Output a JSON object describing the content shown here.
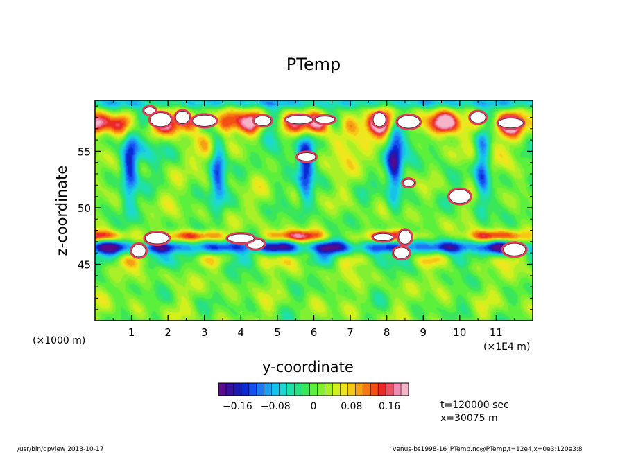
{
  "chart_data": {
    "type": "heatmap",
    "title": "PTemp",
    "xlabel": "y-coordinate",
    "ylabel": "z-coordinate",
    "x_unit_left": "(×1000 m)",
    "x_unit_right": "(×1E4 m)",
    "xlim": [
      0,
      12
    ],
    "ylim": [
      40,
      59.5
    ],
    "x_ticks": [
      {
        "value": 1,
        "label": "1"
      },
      {
        "value": 2,
        "label": "2"
      },
      {
        "value": 3,
        "label": "3"
      },
      {
        "value": 4,
        "label": "4"
      },
      {
        "value": 5,
        "label": "5"
      },
      {
        "value": 6,
        "label": "6"
      },
      {
        "value": 7,
        "label": "7"
      },
      {
        "value": 8,
        "label": "8"
      },
      {
        "value": 9,
        "label": "9"
      },
      {
        "value": 10,
        "label": "10"
      },
      {
        "value": 11,
        "label": "11"
      }
    ],
    "y_ticks": [
      {
        "value": 45,
        "label": "45"
      },
      {
        "value": 50,
        "label": "50"
      },
      {
        "value": 55,
        "label": "55"
      }
    ],
    "colorbar": {
      "min": -0.2,
      "max": 0.2,
      "ticks": [
        {
          "value": -0.16,
          "label": "−0.16"
        },
        {
          "value": -0.08,
          "label": "−0.08"
        },
        {
          "value": 0,
          "label": "0"
        },
        {
          "value": 0.08,
          "label": "0.08"
        },
        {
          "value": 0.16,
          "label": "0.16"
        }
      ],
      "colors": [
        "#5a0a8c",
        "#3a10a0",
        "#1a1ab4",
        "#0a2ad2",
        "#1450f0",
        "#1e78f5",
        "#1ea0f0",
        "#14c3eb",
        "#1ed7d2",
        "#1ee1aa",
        "#28e182",
        "#3ce65a",
        "#5af03c",
        "#82f032",
        "#aaf028",
        "#d2f01e",
        "#f0e61e",
        "#f5c814",
        "#f5a014",
        "#f57814",
        "#f55014",
        "#eb2828",
        "#eb5064",
        "#f08cb4",
        "#f5b4c8"
      ]
    },
    "annotations": {
      "time": "t=120000 sec",
      "position": "x=30075 m"
    },
    "features": {
      "upper_warm_band_z": 57.5,
      "lower_cold_band_z": 46.5,
      "saturated_positive_blobs": [
        {
          "y": 1.5,
          "z": 58.6
        },
        {
          "y": 1.8,
          "z": 57.8
        },
        {
          "y": 2.4,
          "z": 58.0
        },
        {
          "y": 3.0,
          "z": 57.7
        },
        {
          "y": 4.6,
          "z": 57.7
        },
        {
          "y": 5.6,
          "z": 57.8
        },
        {
          "y": 6.3,
          "z": 57.8
        },
        {
          "y": 7.8,
          "z": 57.8
        },
        {
          "y": 8.6,
          "z": 57.6
        },
        {
          "y": 10.5,
          "z": 58.0
        },
        {
          "y": 11.4,
          "z": 57.5
        },
        {
          "y": 5.8,
          "z": 54.5
        },
        {
          "y": 8.6,
          "z": 52.2
        },
        {
          "y": 10.0,
          "z": 51.0
        },
        {
          "y": 1.2,
          "z": 46.2
        },
        {
          "y": 1.7,
          "z": 47.3
        },
        {
          "y": 4.4,
          "z": 46.8
        },
        {
          "y": 4.0,
          "z": 47.3
        },
        {
          "y": 7.9,
          "z": 47.4
        },
        {
          "y": 8.5,
          "z": 47.4
        },
        {
          "y": 11.5,
          "z": 46.3
        },
        {
          "y": 8.4,
          "z": 46.0
        }
      ]
    }
  },
  "footer": {
    "left": "/usr/bin/gpview  2013-10-17",
    "right": "venus-bs1998-16_PTemp.nc@PTemp,t=12e4,x=0e3:120e3:8"
  }
}
